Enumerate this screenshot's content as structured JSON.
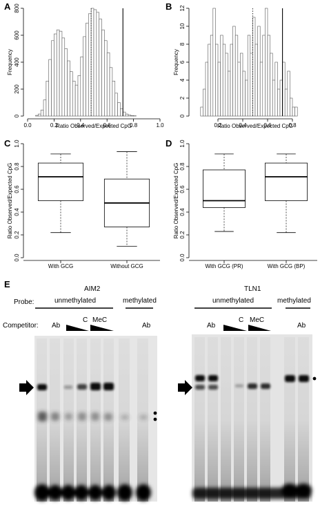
{
  "panels": {
    "A": "A",
    "B": "B",
    "C": "C",
    "D": "D",
    "E": "E"
  },
  "chart_data": [
    {
      "id": "A",
      "type": "bar",
      "xlabel": "Ratio Observed/Expected CpG",
      "ylabel": "Frequency",
      "xlim": [
        0.0,
        1.0
      ],
      "ylim": [
        0,
        800
      ],
      "xticks": [
        "0.0",
        "0.2",
        "0.4",
        "0.6",
        "0.8",
        "1.0"
      ],
      "yticks": [
        "0",
        "200",
        "400",
        "600",
        "800"
      ],
      "bin_width": 0.02,
      "bin_start": 0.06,
      "values": [
        5,
        15,
        45,
        120,
        260,
        420,
        560,
        610,
        640,
        630,
        580,
        500,
        410,
        330,
        260,
        230,
        300,
        440,
        590,
        690,
        760,
        800,
        790,
        770,
        720,
        640,
        560,
        470,
        360,
        260,
        170,
        100,
        55,
        30,
        15,
        8,
        4,
        2
      ],
      "vlines": [
        {
          "x": 0.48,
          "style": "dotted"
        },
        {
          "x": 0.72,
          "style": "solid"
        }
      ]
    },
    {
      "id": "B",
      "type": "bar",
      "xlabel": "Ratio Observed/Expected CpG",
      "ylabel": "Frequency",
      "xlim": [
        0.0,
        1.0
      ],
      "ylim": [
        0,
        12
      ],
      "xticks": [
        "0.2",
        "0.4",
        "0.6",
        "0.8"
      ],
      "yticks": [
        "0",
        "2",
        "4",
        "6",
        "8",
        "10",
        "12"
      ],
      "bin_width": 0.02,
      "bin_start": 0.06,
      "values": [
        1,
        3,
        6,
        8,
        9,
        12,
        8,
        6,
        9,
        8,
        7,
        5,
        8,
        10,
        9,
        6,
        7,
        5,
        4,
        9,
        7,
        11,
        8,
        10,
        6,
        9,
        12,
        9,
        7,
        4,
        6,
        3,
        4,
        6,
        3,
        5,
        2,
        1,
        1
      ],
      "vlines": [
        {
          "x": 0.48,
          "style": "dotted"
        },
        {
          "x": 0.72,
          "style": "solid"
        }
      ]
    },
    {
      "id": "C",
      "type": "box",
      "ylabel": "Ratio Observed/Expected CpG",
      "ylim": [
        0.0,
        1.0
      ],
      "yticks": [
        "0.0",
        "0.2",
        "0.4",
        "0.6",
        "0.8",
        "1.0"
      ],
      "categories": [
        "With GCG",
        "Without GCG"
      ],
      "boxes": [
        {
          "min": 0.22,
          "q1": 0.5,
          "median": 0.71,
          "q3": 0.83,
          "max": 0.91
        },
        {
          "min": 0.1,
          "q1": 0.27,
          "median": 0.48,
          "q3": 0.69,
          "max": 0.93
        }
      ]
    },
    {
      "id": "D",
      "type": "box",
      "ylabel": "Ratio Observed/Expected CpG",
      "ylim": [
        0.0,
        1.0
      ],
      "yticks": [
        "0.0",
        "0.2",
        "0.4",
        "0.6",
        "0.8",
        "1.0"
      ],
      "categories": [
        "With GCG (PR)",
        "With GCG (BP)"
      ],
      "boxes": [
        {
          "min": 0.23,
          "q1": 0.44,
          "median": 0.5,
          "q3": 0.77,
          "max": 0.91
        },
        {
          "min": 0.22,
          "q1": 0.5,
          "median": 0.71,
          "q3": 0.83,
          "max": 0.91
        }
      ]
    }
  ],
  "gel": {
    "probe_label": "Probe:",
    "competitor_label": "Competitor:",
    "left": {
      "title": "AIM2",
      "unmethylated": "unmethylated",
      "methylated": "methylated",
      "ab1": "Ab",
      "c": "C",
      "mec": "MeC",
      "ab2": "Ab"
    },
    "right": {
      "title": "TLN1",
      "unmethylated": "unmethylated",
      "methylated": "methylated",
      "ab1": "Ab",
      "c": "C",
      "mec": "MeC",
      "ab2": "Ab"
    }
  }
}
